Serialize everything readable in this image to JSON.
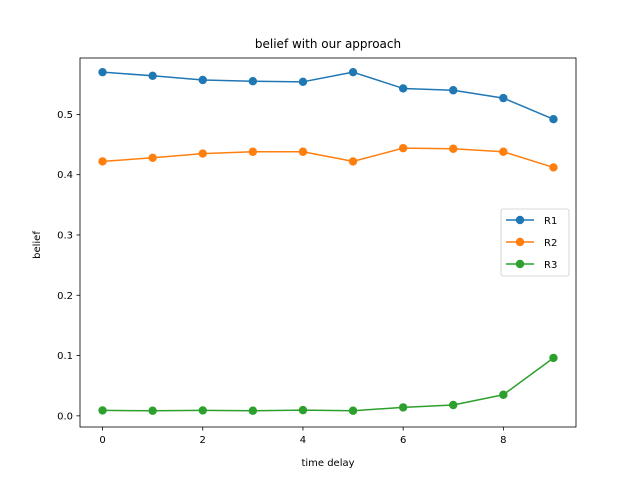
{
  "chart_data": {
    "type": "line",
    "title": "belief with our approach",
    "xlabel": "time delay",
    "ylabel": "belief",
    "xlim": [
      -0.45,
      9.45
    ],
    "ylim": [
      -0.0185,
      0.5935
    ],
    "xticks": [
      0,
      2,
      4,
      6,
      8
    ],
    "yticks": [
      0.0,
      0.1,
      0.2,
      0.3,
      0.4,
      0.5
    ],
    "x": [
      0,
      1,
      2,
      3,
      4,
      5,
      6,
      7,
      8,
      9
    ],
    "series": [
      {
        "name": "R1",
        "color": "#1f77b4",
        "values": [
          0.57,
          0.564,
          0.557,
          0.555,
          0.554,
          0.57,
          0.543,
          0.54,
          0.527,
          0.492
        ]
      },
      {
        "name": "R2",
        "color": "#ff7f0e",
        "values": [
          0.422,
          0.428,
          0.435,
          0.438,
          0.438,
          0.422,
          0.444,
          0.443,
          0.438,
          0.412
        ]
      },
      {
        "name": "R3",
        "color": "#2ca02c",
        "values": [
          0.009,
          0.0085,
          0.009,
          0.0085,
          0.0095,
          0.0085,
          0.014,
          0.018,
          0.035,
          0.096
        ]
      }
    ],
    "grid": false,
    "legend_position": "center-right"
  }
}
